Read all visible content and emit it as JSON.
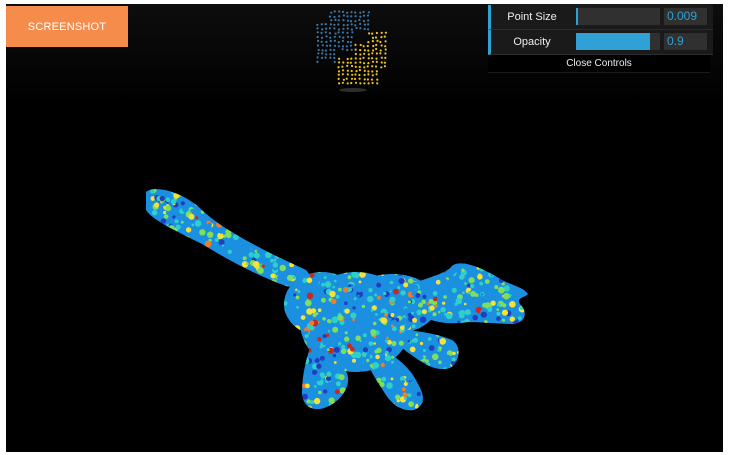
{
  "toolbar": {
    "screenshot_label": "SCREENSHOT"
  },
  "controls": {
    "point_size": {
      "label": "Point Size",
      "value": "0.009",
      "fraction": 0.02
    },
    "opacity": {
      "label": "Opacity",
      "value": "0.9",
      "fraction": 0.88
    },
    "close_label": "Close Controls"
  },
  "logo": {
    "name": "python-logo",
    "colors": {
      "blue": "#3c78aa",
      "yellow": "#f0c31e"
    }
  },
  "colors": {
    "background": "#000000",
    "button": "#f58c4b",
    "accent": "#2fa1d6",
    "colormap": [
      "#1f3fbf",
      "#1b8fe0",
      "#2fd0c8",
      "#7ee05a",
      "#f2e23a",
      "#f07c28",
      "#c8281e"
    ]
  },
  "viewport": {
    "object": "point-cloud-dinosaur"
  }
}
